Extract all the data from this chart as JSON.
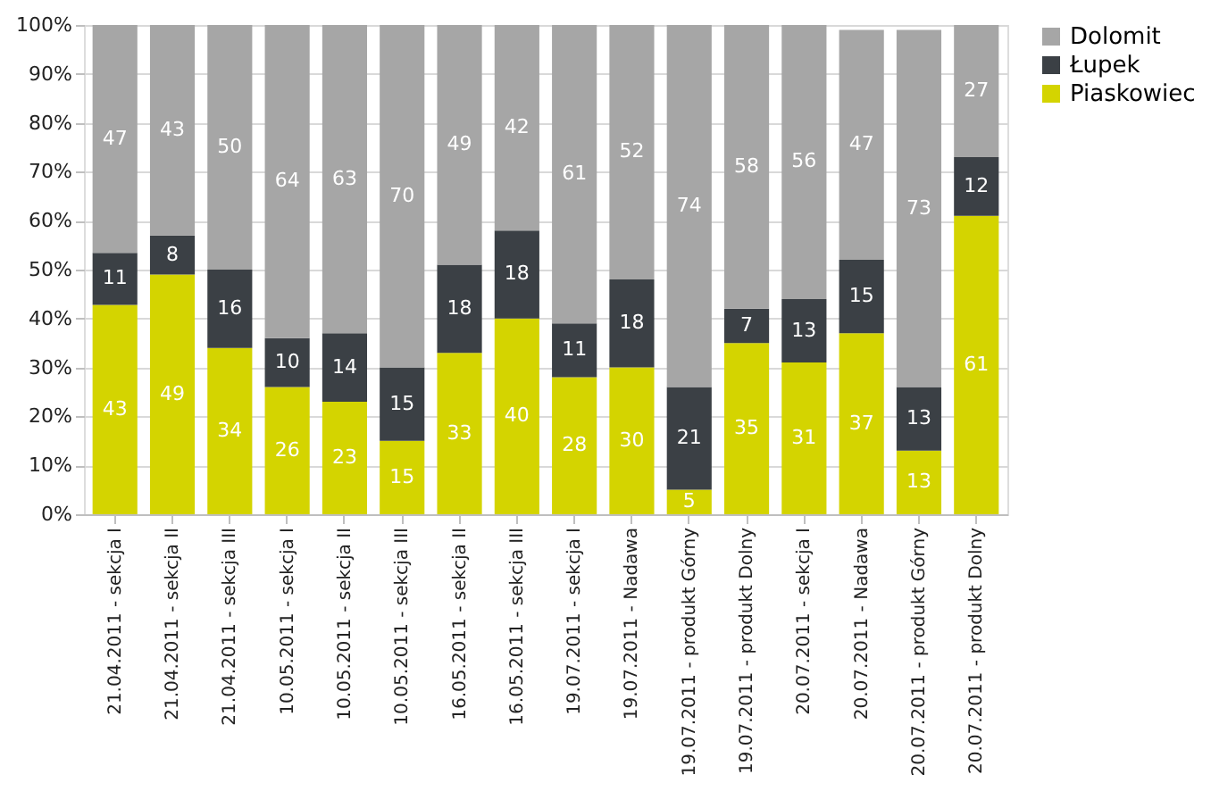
{
  "chart_data": {
    "type": "bar",
    "stacked": true,
    "categories": [
      "21.04.2011 - sekcja I",
      "21.04.2011 - sekcja II",
      "21.04.2011 - sekcja III",
      "10.05.2011 - sekcja I",
      "10.05.2011 - sekcja II",
      "10.05.2011 - sekcja III",
      "16.05.2011 - sekcja II",
      "16.05.2011 - sekcja III",
      "19.07.2011 - sekcja I",
      "19.07.2011 - Nadawa",
      "19.07.2011 - produkt Górny",
      "19.07.2011 - produkt Dolny",
      "20.07.2011 - sekcja I",
      "20.07.2011 - Nadawa",
      "20.07.2011 - produkt Górny",
      "20.07.2011 - produkt Dolny"
    ],
    "series": [
      {
        "name": "Piaskowiec",
        "color": "#d4d400",
        "value_labels": [
          "43",
          "49",
          "34",
          "26",
          "23",
          "15",
          "33",
          "40",
          "28",
          "30",
          "5",
          "35",
          "31",
          "37",
          "13",
          "61"
        ],
        "values": [
          42.8,
          49,
          34,
          26,
          23,
          15,
          33,
          40,
          28,
          30,
          5,
          35,
          31,
          37,
          13,
          61
        ]
      },
      {
        "name": "Łupek",
        "color": "#3b4045",
        "value_labels": [
          "11",
          "8",
          "16",
          "10",
          "14",
          "15",
          "18",
          "18",
          "11",
          "18",
          "21",
          "7",
          "13",
          "15",
          "13",
          "12"
        ],
        "values": [
          10.6,
          8,
          16,
          10,
          14,
          15,
          18,
          18,
          11,
          18,
          21,
          7,
          13,
          15,
          13,
          12
        ]
      },
      {
        "name": "Dolomit",
        "color": "#a6a6a6",
        "value_labels": [
          "47",
          "43",
          "50",
          "64",
          "63",
          "70",
          "49",
          "42",
          "61",
          "52",
          "74",
          "58",
          "56",
          "47",
          "73",
          "27"
        ],
        "values": [
          46.6,
          43,
          50,
          64,
          63,
          70,
          49,
          42,
          61,
          52,
          74,
          58,
          56,
          47,
          73,
          27
        ]
      }
    ],
    "ylim": [
      0,
      100
    ],
    "yticks": [
      {
        "value": 0,
        "label": "0%"
      },
      {
        "value": 10,
        "label": "10%"
      },
      {
        "value": 20,
        "label": "20%"
      },
      {
        "value": 30,
        "label": "30%"
      },
      {
        "value": 40,
        "label": "40%"
      },
      {
        "value": 50,
        "label": "50%"
      },
      {
        "value": 60,
        "label": "60%"
      },
      {
        "value": 70,
        "label": "70%"
      },
      {
        "value": 80,
        "label": "80%"
      },
      {
        "value": 90,
        "label": "90%"
      },
      {
        "value": 100,
        "label": "100%"
      }
    ],
    "grid": "y",
    "legend": "right"
  }
}
